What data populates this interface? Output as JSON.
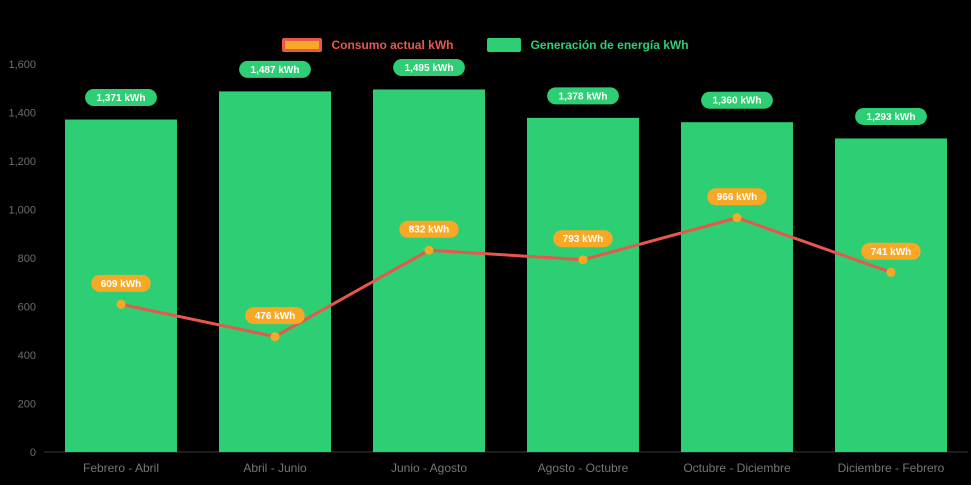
{
  "legend": [
    {
      "label": "Consumo actual kWh",
      "swatch_fill": "#f9a825",
      "swatch_border": "#e8574c",
      "text_color": "#e8574c"
    },
    {
      "label": "Generación de energía kWh",
      "swatch_fill": "#2dce74",
      "text_color": "#2dce74"
    }
  ],
  "colors": {
    "background": "#000000",
    "bar": "#2dce74",
    "line": "#e8574c",
    "marker": "#f9a825",
    "bar_label_pill": "#2dce74",
    "line_label_pill": "#f9a825",
    "axis_text": "#6e6e6e"
  },
  "chart_data": {
    "type": "bar+line",
    "title": "",
    "xlabel": "",
    "ylabel": "",
    "categories": [
      "Febrero - Abril",
      "Abril - Junio",
      "Junio - Agosto",
      "Agosto - Octubre",
      "Octubre - Diciembre",
      "Diciembre - Febrero"
    ],
    "series": [
      {
        "name": "Generación de energía kWh",
        "type": "bar",
        "color": "#2dce74",
        "values": [
          1371,
          1487,
          1495,
          1378,
          1360,
          1293
        ],
        "labels": [
          "1,371 kWh",
          "1,487 kWh",
          "1,495 kWh",
          "1,378 kWh",
          "1,360 kWh",
          "1,293 kWh"
        ]
      },
      {
        "name": "Consumo actual kWh",
        "type": "line",
        "color": "#e8574c",
        "marker_color": "#f9a825",
        "values": [
          609,
          476,
          832,
          793,
          966,
          741
        ],
        "labels": [
          "609 kWh",
          "476 kWh",
          "832 kWh",
          "793 kWh",
          "966 kWh",
          "741 kWh"
        ]
      }
    ],
    "ylim": [
      0,
      1600
    ],
    "yticks": [
      0,
      200,
      400,
      600,
      800,
      1000,
      1200,
      1400,
      1600
    ],
    "ytick_labels": [
      "0",
      "200",
      "400",
      "600",
      "800",
      "1,000",
      "1,200",
      "1,400",
      "1,600"
    ],
    "grid": false,
    "legend_position": "top"
  }
}
